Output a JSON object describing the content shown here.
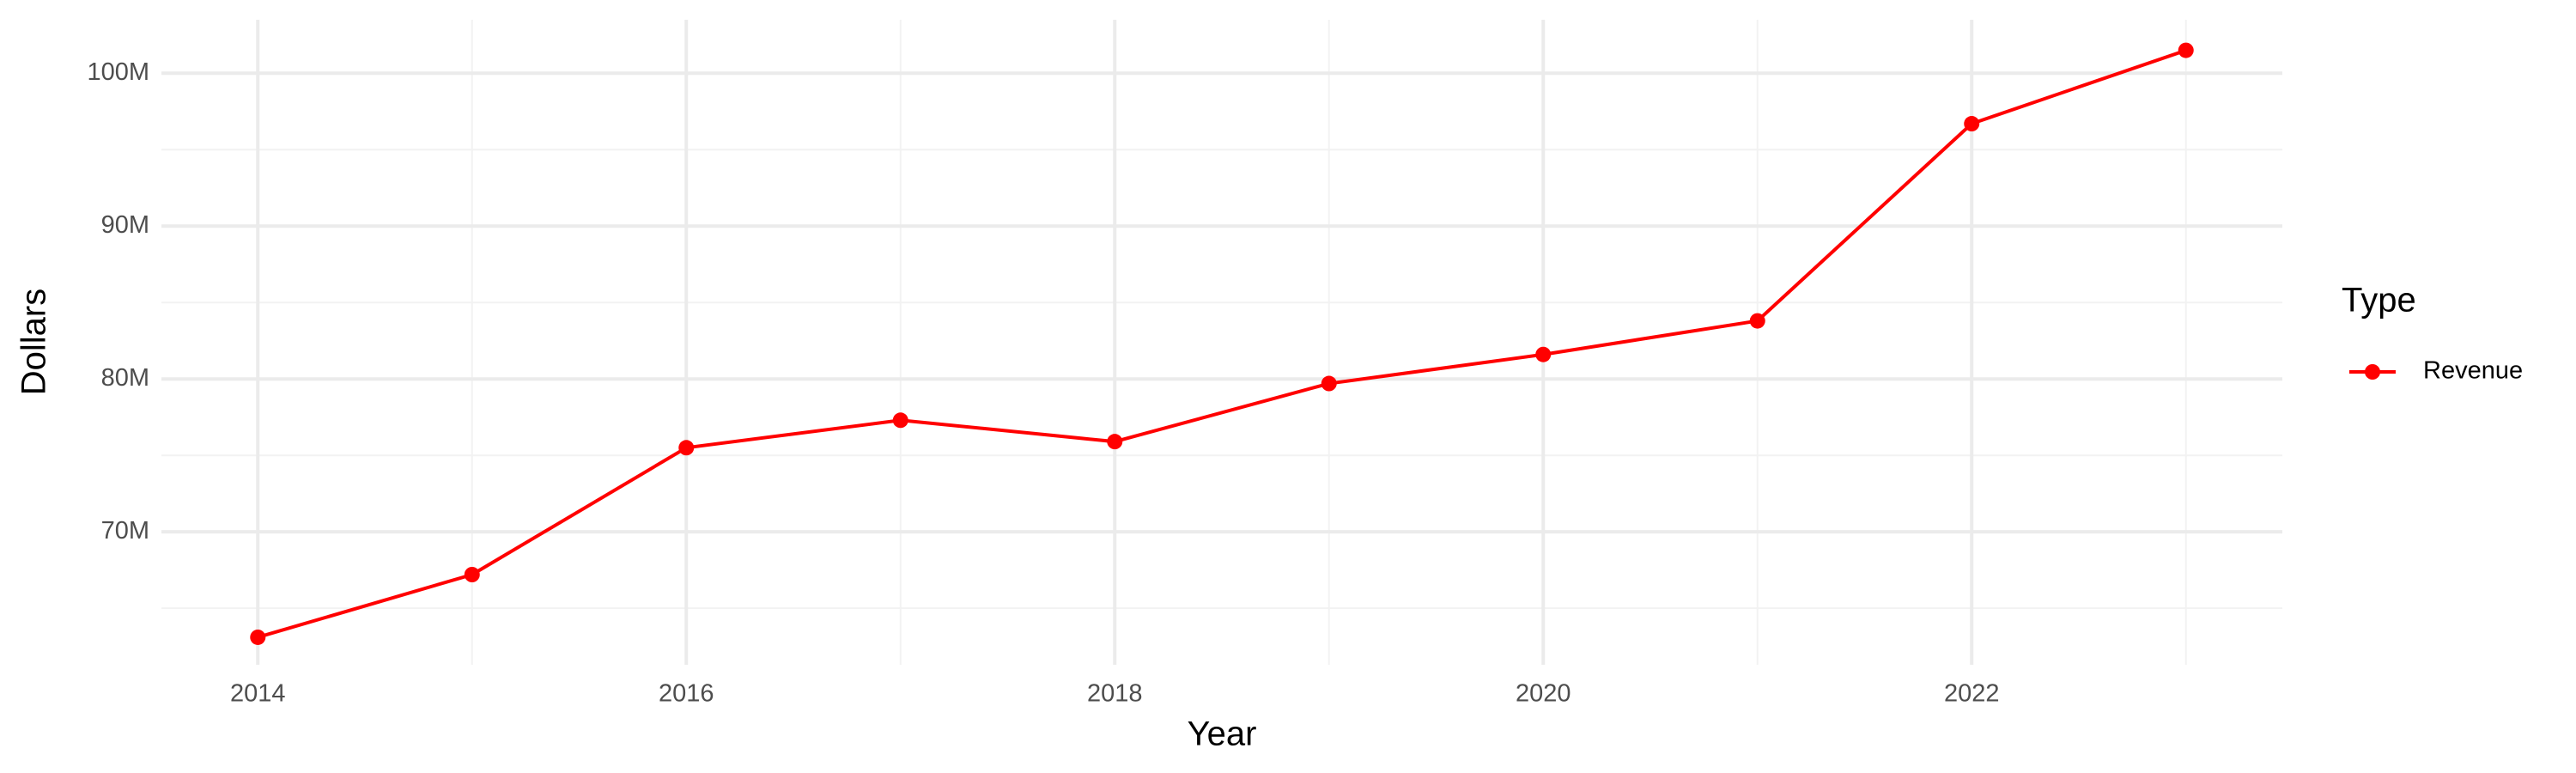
{
  "chart_data": {
    "type": "line",
    "x_label": "Year",
    "y_label": "Dollars",
    "x": [
      2014,
      2015,
      2016,
      2017,
      2018,
      2019,
      2020,
      2021,
      2022,
      2023
    ],
    "series": [
      {
        "name": "Revenue",
        "color": "#ff0000",
        "values": [
          63100000,
          67200000,
          75500000,
          77300000,
          75900000,
          79700000,
          81600000,
          83800000,
          96700000,
          101500000
        ]
      }
    ],
    "legend_title": "Type",
    "legend_position": "right",
    "xlim": [
      2013.55,
      2023.45
    ],
    "xticks": [
      2014,
      2016,
      2018,
      2020,
      2022
    ],
    "ylim": [
      61300000,
      103500000
    ],
    "yticks": [
      {
        "value": 70000000,
        "label": "70M"
      },
      {
        "value": 80000000,
        "label": "80M"
      },
      {
        "value": 90000000,
        "label": "90M"
      },
      {
        "value": 100000000,
        "label": "100M"
      }
    ],
    "grid": true
  }
}
